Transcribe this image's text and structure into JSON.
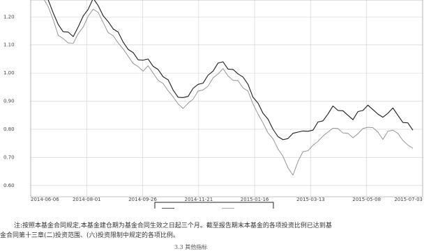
{
  "chart_data": {
    "type": "line",
    "x_ticks": [
      "2014-06-06",
      "2014-08-01",
      "2014-09-26",
      "2014-11-21",
      "2015-01-16",
      "2015-03-13",
      "2015-05-08",
      "2015-07-03"
    ],
    "y_ticks": [
      "1.20",
      "1.10",
      "1.00",
      "0.90",
      "0.80",
      "0.70",
      "0.60"
    ],
    "ylim": [
      0.56,
      1.26
    ],
    "grid": true,
    "legend": {
      "placement": "bottom",
      "entries": [
        "",
        ""
      ]
    },
    "series": [
      {
        "name": "",
        "values": [
          1.3,
          1.26,
          1.22,
          1.17,
          1.15,
          1.14,
          1.13,
          1.17,
          1.2,
          1.23,
          1.26,
          1.24,
          1.21,
          1.18,
          1.16,
          1.14,
          1.11,
          1.09,
          1.07,
          1.05,
          1.04,
          1.05,
          1.03,
          1.01,
          0.99,
          0.97,
          0.94,
          0.92,
          0.91,
          0.92,
          0.94,
          0.96,
          0.97,
          0.99,
          1.01,
          1.03,
          1.04,
          1.02,
          1.01,
          1.0,
          0.98,
          0.96,
          0.92,
          0.89,
          0.86,
          0.83,
          0.8,
          0.78,
          0.76,
          0.77,
          0.78,
          0.79,
          0.8,
          0.79,
          0.8,
          0.82,
          0.83,
          0.86,
          0.88,
          0.87,
          0.86,
          0.85,
          0.84,
          0.86,
          0.87,
          0.88,
          0.87,
          0.86,
          0.84,
          0.86,
          0.87,
          0.85,
          0.83,
          0.82,
          0.8
        ]
      },
      {
        "name": "",
        "values": [
          1.27,
          1.23,
          1.19,
          1.14,
          1.12,
          1.11,
          1.1,
          1.14,
          1.17,
          1.2,
          1.23,
          1.21,
          1.18,
          1.15,
          1.13,
          1.11,
          1.08,
          1.06,
          1.04,
          1.02,
          1.01,
          1.02,
          1.0,
          0.98,
          0.96,
          0.94,
          0.91,
          0.89,
          0.88,
          0.89,
          0.91,
          0.93,
          0.94,
          0.96,
          0.98,
          1.0,
          1.01,
          0.99,
          0.98,
          0.97,
          0.95,
          0.93,
          0.89,
          0.86,
          0.82,
          0.79,
          0.76,
          0.73,
          0.71,
          0.66,
          0.64,
          0.68,
          0.72,
          0.73,
          0.74,
          0.76,
          0.77,
          0.79,
          0.81,
          0.8,
          0.79,
          0.78,
          0.77,
          0.79,
          0.8,
          0.81,
          0.8,
          0.79,
          0.77,
          0.79,
          0.8,
          0.78,
          0.76,
          0.75,
          0.73
        ]
      }
    ]
  },
  "colors": {
    "series1": "#1a1a1a",
    "series2": "#8a8a8a",
    "grid": "#cfcfcf"
  },
  "note": {
    "line1": "注:按照本基金合同规定,本基金建仓期为基金合同生效之日起三个月。截至报告期末本基金的各项投资比例已达到基",
    "line2": "金合同第十三章(二)投资范围、(六)投资限制中规定的各项比例。"
  },
  "caption": "3.3 其他指标"
}
